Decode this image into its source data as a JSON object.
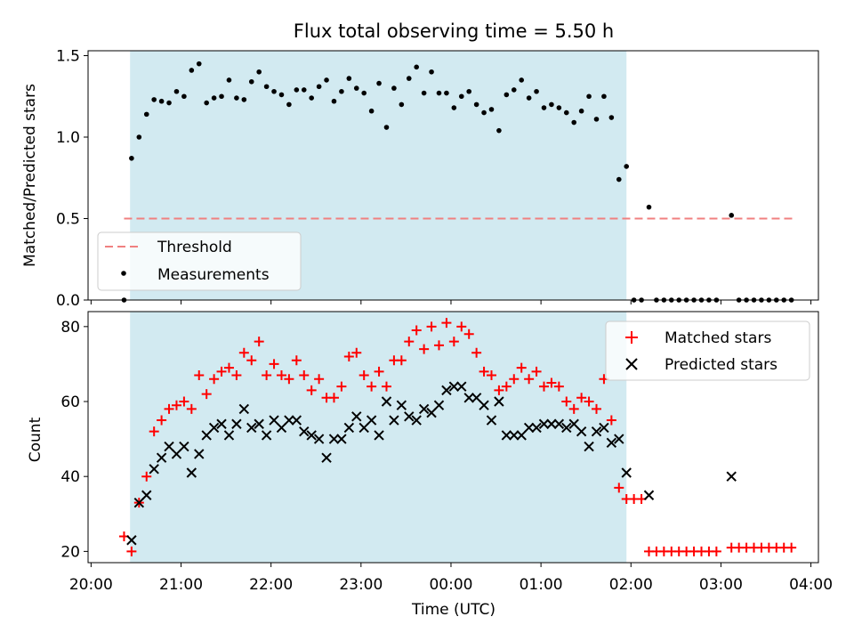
{
  "chart_data": [
    {
      "type": "scatter",
      "title": "Flux total observing time = 5.50 h",
      "xlabel": "",
      "ylabel": "Matched/Predicted stars",
      "xlim": [
        "19:58",
        "04:05"
      ],
      "ylim": [
        0,
        1.53
      ],
      "yticks": [
        0.0,
        0.5,
        1.0,
        1.5
      ],
      "ytick_labels": [
        "0.0",
        "0.5",
        "1.0",
        "1.5"
      ],
      "shaded_span": [
        "20:26",
        "01:57"
      ],
      "shaded_color": "#add8e6",
      "threshold": {
        "name": "Threshold",
        "value": 0.5,
        "x_start": "20:22",
        "x_end": "03:48",
        "color": "#f08080",
        "style": "dashed"
      },
      "legend": {
        "position": "lower-left",
        "entries": [
          "Threshold",
          "Measurements"
        ]
      },
      "series": [
        {
          "name": "Measurements",
          "color": "#000000",
          "marker": "dot",
          "points": [
            [
              "20:22",
              0.0
            ],
            [
              "20:27",
              0.87
            ],
            [
              "20:32",
              1.0
            ],
            [
              "20:37",
              1.14
            ],
            [
              "20:42",
              1.23
            ],
            [
              "20:47",
              1.22
            ],
            [
              "20:52",
              1.21
            ],
            [
              "20:57",
              1.28
            ],
            [
              "21:02",
              1.25
            ],
            [
              "21:07",
              1.41
            ],
            [
              "21:12",
              1.45
            ],
            [
              "21:17",
              1.21
            ],
            [
              "21:22",
              1.24
            ],
            [
              "21:27",
              1.25
            ],
            [
              "21:32",
              1.35
            ],
            [
              "21:37",
              1.24
            ],
            [
              "21:42",
              1.23
            ],
            [
              "21:47",
              1.34
            ],
            [
              "21:52",
              1.4
            ],
            [
              "21:57",
              1.31
            ],
            [
              "22:02",
              1.28
            ],
            [
              "22:07",
              1.26
            ],
            [
              "22:12",
              1.2
            ],
            [
              "22:17",
              1.29
            ],
            [
              "22:22",
              1.29
            ],
            [
              "22:27",
              1.24
            ],
            [
              "22:32",
              1.31
            ],
            [
              "22:37",
              1.35
            ],
            [
              "22:42",
              1.22
            ],
            [
              "22:47",
              1.28
            ],
            [
              "22:52",
              1.36
            ],
            [
              "22:57",
              1.3
            ],
            [
              "23:02",
              1.27
            ],
            [
              "23:07",
              1.16
            ],
            [
              "23:12",
              1.33
            ],
            [
              "23:17",
              1.06
            ],
            [
              "23:22",
              1.3
            ],
            [
              "23:27",
              1.2
            ],
            [
              "23:32",
              1.36
            ],
            [
              "23:37",
              1.43
            ],
            [
              "23:42",
              1.27
            ],
            [
              "23:47",
              1.4
            ],
            [
              "23:52",
              1.27
            ],
            [
              "23:57",
              1.27
            ],
            [
              "00:02",
              1.18
            ],
            [
              "00:07",
              1.25
            ],
            [
              "00:12",
              1.28
            ],
            [
              "00:17",
              1.2
            ],
            [
              "00:22",
              1.15
            ],
            [
              "00:27",
              1.17
            ],
            [
              "00:32",
              1.04
            ],
            [
              "00:37",
              1.26
            ],
            [
              "00:42",
              1.29
            ],
            [
              "00:47",
              1.35
            ],
            [
              "00:52",
              1.24
            ],
            [
              "00:57",
              1.28
            ],
            [
              "01:02",
              1.18
            ],
            [
              "01:07",
              1.2
            ],
            [
              "01:12",
              1.18
            ],
            [
              "01:17",
              1.15
            ],
            [
              "01:22",
              1.09
            ],
            [
              "01:27",
              1.16
            ],
            [
              "01:32",
              1.25
            ],
            [
              "01:37",
              1.11
            ],
            [
              "01:42",
              1.25
            ],
            [
              "01:47",
              1.12
            ],
            [
              "01:52",
              0.74
            ],
            [
              "01:57",
              0.82
            ],
            [
              "02:02",
              0.0
            ],
            [
              "02:07",
              0.0
            ],
            [
              "02:12",
              0.57
            ],
            [
              "02:17",
              0.0
            ],
            [
              "02:22",
              0.0
            ],
            [
              "02:27",
              0.0
            ],
            [
              "02:32",
              0.0
            ],
            [
              "02:37",
              0.0
            ],
            [
              "02:42",
              0.0
            ],
            [
              "02:47",
              0.0
            ],
            [
              "02:52",
              0.0
            ],
            [
              "02:57",
              0.0
            ],
            [
              "03:07",
              0.52
            ],
            [
              "03:12",
              0.0
            ],
            [
              "03:17",
              0.0
            ],
            [
              "03:22",
              0.0
            ],
            [
              "03:27",
              0.0
            ],
            [
              "03:32",
              0.0
            ],
            [
              "03:37",
              0.0
            ],
            [
              "03:42",
              0.0
            ],
            [
              "03:47",
              0.0
            ]
          ]
        }
      ]
    },
    {
      "type": "scatter",
      "title": "",
      "xlabel": "Time (UTC)",
      "ylabel": "Count",
      "xlim": [
        "19:58",
        "04:05"
      ],
      "ylim": [
        17,
        84
      ],
      "yticks": [
        20,
        40,
        60,
        80
      ],
      "ytick_labels": [
        "20",
        "40",
        "60",
        "80"
      ],
      "xticks": [
        "20:00",
        "21:00",
        "22:00",
        "23:00",
        "00:00",
        "01:00",
        "02:00",
        "03:00",
        "04:00"
      ],
      "shaded_span": [
        "20:26",
        "01:57"
      ],
      "shaded_color": "#add8e6",
      "legend": {
        "position": "top-right",
        "entries": [
          "Matched stars",
          "Predicted stars"
        ]
      },
      "series": [
        {
          "name": "Matched stars",
          "color": "#ff0000",
          "marker": "plus",
          "points": [
            [
              "20:22",
              24
            ],
            [
              "20:27",
              20
            ],
            [
              "20:32",
              33
            ],
            [
              "20:37",
              40
            ],
            [
              "20:42",
              52
            ],
            [
              "20:47",
              55
            ],
            [
              "20:52",
              58
            ],
            [
              "20:57",
              59
            ],
            [
              "21:02",
              60
            ],
            [
              "21:07",
              58
            ],
            [
              "21:12",
              67
            ],
            [
              "21:17",
              62
            ],
            [
              "21:22",
              66
            ],
            [
              "21:27",
              68
            ],
            [
              "21:32",
              69
            ],
            [
              "21:37",
              67
            ],
            [
              "21:42",
              73
            ],
            [
              "21:47",
              71
            ],
            [
              "21:52",
              76
            ],
            [
              "21:57",
              67
            ],
            [
              "22:02",
              70
            ],
            [
              "22:07",
              67
            ],
            [
              "22:12",
              66
            ],
            [
              "22:17",
              71
            ],
            [
              "22:22",
              67
            ],
            [
              "22:27",
              63
            ],
            [
              "22:32",
              66
            ],
            [
              "22:37",
              61
            ],
            [
              "22:42",
              61
            ],
            [
              "22:47",
              64
            ],
            [
              "22:52",
              72
            ],
            [
              "22:57",
              73
            ],
            [
              "23:02",
              67
            ],
            [
              "23:07",
              64
            ],
            [
              "23:12",
              68
            ],
            [
              "23:17",
              64
            ],
            [
              "23:22",
              71
            ],
            [
              "23:27",
              71
            ],
            [
              "23:32",
              76
            ],
            [
              "23:37",
              79
            ],
            [
              "23:42",
              74
            ],
            [
              "23:47",
              80
            ],
            [
              "23:52",
              75
            ],
            [
              "23:57",
              81
            ],
            [
              "00:02",
              76
            ],
            [
              "00:07",
              80
            ],
            [
              "00:12",
              78
            ],
            [
              "00:17",
              73
            ],
            [
              "00:22",
              68
            ],
            [
              "00:27",
              67
            ],
            [
              "00:32",
              63
            ],
            [
              "00:37",
              64
            ],
            [
              "00:42",
              66
            ],
            [
              "00:47",
              69
            ],
            [
              "00:52",
              66
            ],
            [
              "00:57",
              68
            ],
            [
              "01:02",
              64
            ],
            [
              "01:07",
              65
            ],
            [
              "01:12",
              64
            ],
            [
              "01:17",
              60
            ],
            [
              "01:22",
              58
            ],
            [
              "01:27",
              61
            ],
            [
              "01:32",
              60
            ],
            [
              "01:37",
              58
            ],
            [
              "01:42",
              66
            ],
            [
              "01:47",
              55
            ],
            [
              "01:52",
              37
            ],
            [
              "01:57",
              34
            ],
            [
              "02:02",
              34
            ],
            [
              "02:07",
              34
            ],
            [
              "02:12",
              20
            ],
            [
              "02:17",
              20
            ],
            [
              "02:22",
              20
            ],
            [
              "02:27",
              20
            ],
            [
              "02:32",
              20
            ],
            [
              "02:37",
              20
            ],
            [
              "02:42",
              20
            ],
            [
              "02:47",
              20
            ],
            [
              "02:52",
              20
            ],
            [
              "02:57",
              20
            ],
            [
              "03:07",
              21
            ],
            [
              "03:12",
              21
            ],
            [
              "03:17",
              21
            ],
            [
              "03:22",
              21
            ],
            [
              "03:27",
              21
            ],
            [
              "03:32",
              21
            ],
            [
              "03:37",
              21
            ],
            [
              "03:42",
              21
            ],
            [
              "03:47",
              21
            ]
          ]
        },
        {
          "name": "Predicted stars",
          "color": "#000000",
          "marker": "x",
          "points": [
            [
              "20:27",
              23
            ],
            [
              "20:32",
              33
            ],
            [
              "20:37",
              35
            ],
            [
              "20:42",
              42
            ],
            [
              "20:47",
              45
            ],
            [
              "20:52",
              48
            ],
            [
              "20:57",
              46
            ],
            [
              "21:02",
              48
            ],
            [
              "21:07",
              41
            ],
            [
              "21:12",
              46
            ],
            [
              "21:17",
              51
            ],
            [
              "21:22",
              53
            ],
            [
              "21:27",
              54
            ],
            [
              "21:32",
              51
            ],
            [
              "21:37",
              54
            ],
            [
              "21:42",
              58
            ],
            [
              "21:47",
              53
            ],
            [
              "21:52",
              54
            ],
            [
              "21:57",
              51
            ],
            [
              "22:02",
              55
            ],
            [
              "22:07",
              53
            ],
            [
              "22:12",
              55
            ],
            [
              "22:17",
              55
            ],
            [
              "22:22",
              52
            ],
            [
              "22:27",
              51
            ],
            [
              "22:32",
              50
            ],
            [
              "22:37",
              45
            ],
            [
              "22:42",
              50
            ],
            [
              "22:47",
              50
            ],
            [
              "22:52",
              53
            ],
            [
              "22:57",
              56
            ],
            [
              "23:02",
              53
            ],
            [
              "23:07",
              55
            ],
            [
              "23:12",
              51
            ],
            [
              "23:17",
              60
            ],
            [
              "23:22",
              55
            ],
            [
              "23:27",
              59
            ],
            [
              "23:32",
              56
            ],
            [
              "23:37",
              55
            ],
            [
              "23:42",
              58
            ],
            [
              "23:47",
              57
            ],
            [
              "23:52",
              59
            ],
            [
              "23:57",
              63
            ],
            [
              "00:02",
              64
            ],
            [
              "00:07",
              64
            ],
            [
              "00:12",
              61
            ],
            [
              "00:17",
              61
            ],
            [
              "00:22",
              59
            ],
            [
              "00:27",
              55
            ],
            [
              "00:32",
              60
            ],
            [
              "00:37",
              51
            ],
            [
              "00:42",
              51
            ],
            [
              "00:47",
              51
            ],
            [
              "00:52",
              53
            ],
            [
              "00:57",
              53
            ],
            [
              "01:02",
              54
            ],
            [
              "01:07",
              54
            ],
            [
              "01:12",
              54
            ],
            [
              "01:17",
              53
            ],
            [
              "01:22",
              54
            ],
            [
              "01:27",
              52
            ],
            [
              "01:32",
              48
            ],
            [
              "01:37",
              52
            ],
            [
              "01:42",
              53
            ],
            [
              "01:47",
              49
            ],
            [
              "01:52",
              50
            ],
            [
              "01:57",
              41
            ],
            [
              "02:12",
              35
            ],
            [
              "03:07",
              40
            ]
          ]
        }
      ]
    }
  ]
}
